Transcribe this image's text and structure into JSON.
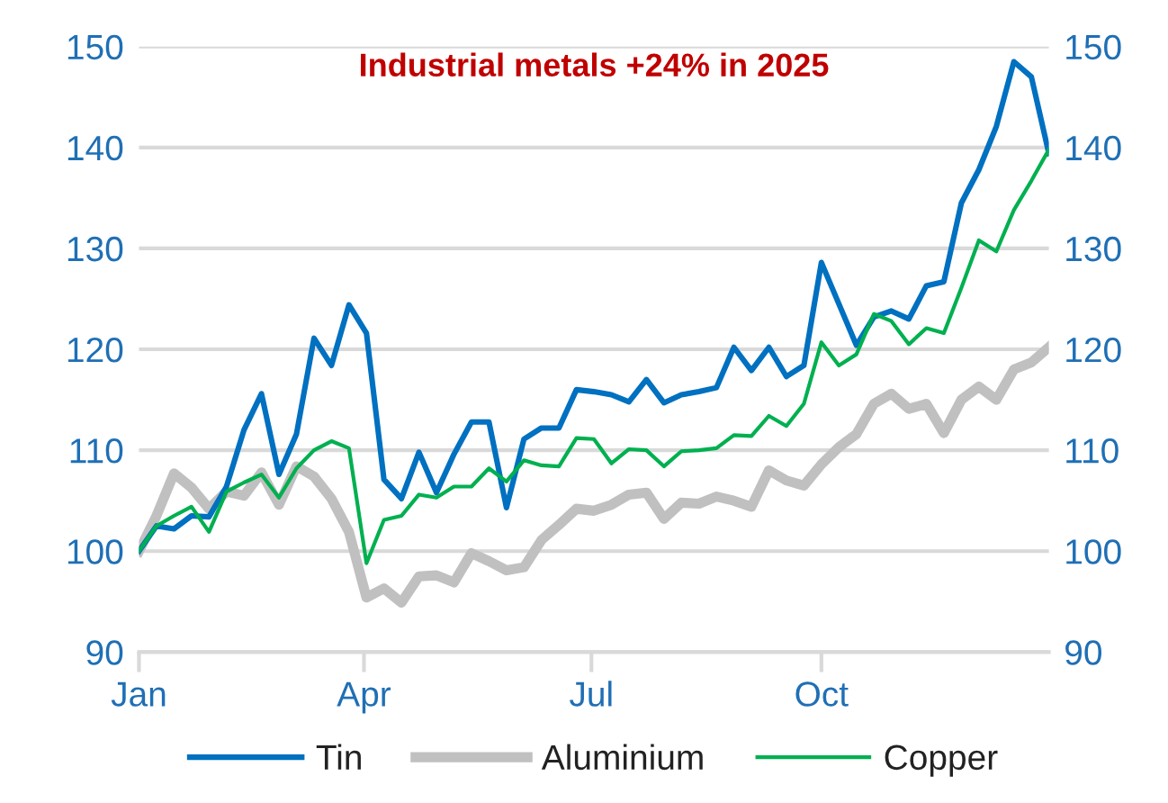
{
  "chart_data": {
    "type": "line",
    "title": "Industrial metals +24% in 2025",
    "x": [
      "2025-01-01",
      "2025-01-08",
      "2025-01-15",
      "2025-01-22",
      "2025-01-29",
      "2025-02-05",
      "2025-02-12",
      "2025-02-19",
      "2025-02-26",
      "2025-03-05",
      "2025-03-12",
      "2025-03-19",
      "2025-03-26",
      "2025-04-02",
      "2025-04-09",
      "2025-04-16",
      "2025-04-23",
      "2025-04-30",
      "2025-05-07",
      "2025-05-14",
      "2025-05-21",
      "2025-05-28",
      "2025-06-04",
      "2025-06-11",
      "2025-06-18",
      "2025-06-25",
      "2025-07-02",
      "2025-07-09",
      "2025-07-16",
      "2025-07-23",
      "2025-07-30",
      "2025-08-06",
      "2025-08-13",
      "2025-08-20",
      "2025-08-27",
      "2025-09-03",
      "2025-09-10",
      "2025-09-17",
      "2025-09-24",
      "2025-10-01",
      "2025-10-08",
      "2025-10-15",
      "2025-10-22",
      "2025-10-29",
      "2025-11-05",
      "2025-11-12",
      "2025-11-19",
      "2025-11-26",
      "2025-12-03",
      "2025-12-10",
      "2025-12-17",
      "2025-12-24",
      "2025-12-31"
    ],
    "series": [
      {
        "name": "Tin",
        "color": "#0070c0",
        "values": [
          100,
          102.5,
          102.2,
          103.5,
          103.4,
          106.4,
          112,
          115.6,
          107.6,
          111.6,
          121.1,
          118.4,
          124.4,
          121.6,
          107.1,
          105.2,
          109.8,
          105.8,
          109.6,
          112.8,
          112.8,
          104.3,
          111.1,
          112.2,
          112.2,
          116.0,
          115.8,
          115.5,
          114.8,
          117.0,
          114.7,
          115.5,
          115.8,
          116.2,
          120.2,
          117.9,
          120.2,
          117.3,
          118.4,
          128.6,
          124.5,
          120.4,
          123.2,
          123.8,
          123.0,
          126.3,
          126.7,
          134.5,
          137.8,
          142.1,
          148.5,
          147.0,
          139.4
        ]
      },
      {
        "name": "Aluminium",
        "color": "#c0c0c0",
        "values": [
          100,
          103.5,
          107.7,
          106.3,
          104.2,
          105.9,
          105.5,
          107.8,
          104.6,
          108.4,
          107.4,
          105.2,
          101.9,
          95.4,
          96.3,
          94.9,
          97.5,
          97.6,
          96.9,
          99.8,
          99.0,
          98.1,
          98.4,
          101.1,
          102.6,
          104.2,
          104.0,
          104.6,
          105.6,
          105.8,
          103.2,
          104.8,
          104.7,
          105.4,
          105.0,
          104.4,
          108.0,
          107.0,
          106.5,
          108.6,
          110.3,
          111.6,
          114.6,
          115.6,
          114.1,
          114.6,
          111.7,
          115.0,
          116.3,
          115.0,
          118.0,
          118.7,
          120.2
        ]
      },
      {
        "name": "Copper",
        "color": "#00b050",
        "values": [
          100,
          102.5,
          103.5,
          104.4,
          101.9,
          105.9,
          106.8,
          107.6,
          105.3,
          108.2,
          110.0,
          110.9,
          110.2,
          98.8,
          103.1,
          103.5,
          105.6,
          105.3,
          106.4,
          106.4,
          108.2,
          106.9,
          109.0,
          108.5,
          108.4,
          111.2,
          111.1,
          108.7,
          110.1,
          110.0,
          108.4,
          109.9,
          110.0,
          110.2,
          111.5,
          111.4,
          113.4,
          112.4,
          114.6,
          120.7,
          118.4,
          119.5,
          123.5,
          122.8,
          120.5,
          122.1,
          121.6,
          126.1,
          130.8,
          129.7,
          133.8,
          136.7,
          139.8
        ]
      }
    ],
    "xlim": [
      "2025-01-01",
      "2025-12-31"
    ],
    "xticks": [
      {
        "value": "2025-01-01",
        "label": "Jan"
      },
      {
        "value": "2025-04-01",
        "label": "Apr"
      },
      {
        "value": "2025-07-01",
        "label": "Jul"
      },
      {
        "value": "2025-10-01",
        "label": "Oct"
      }
    ],
    "ylim": [
      90,
      150
    ],
    "yticks": [
      90,
      100,
      110,
      120,
      130,
      140,
      150
    ],
    "y2lim": [
      90,
      150
    ],
    "y2ticks": [
      90,
      100,
      110,
      120,
      130,
      140,
      150
    ],
    "grid": "y",
    "legend": "bottom",
    "marker": "none",
    "line_style": "solid"
  }
}
